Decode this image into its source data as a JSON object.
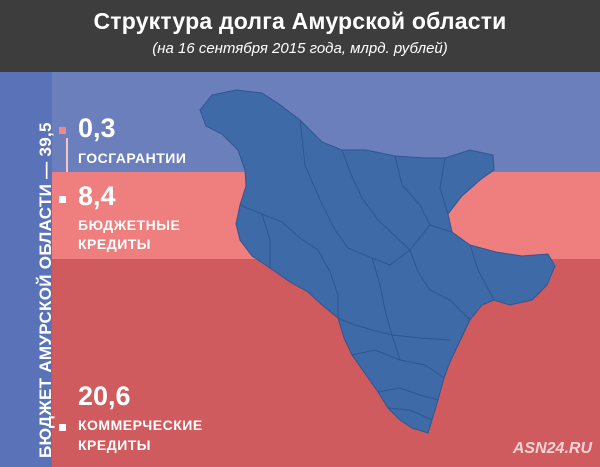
{
  "header": {
    "title": "Структура долга Амурской области",
    "subtitle": "(на 16 сентября 2015 года, млрд. рублей)"
  },
  "budget_label": "БЮДЖЕТ АМУРСКОЙ ОБЛАСТИ — 39,5",
  "items": [
    {
      "value": "0,3",
      "label": "ГОСГАРАНТИИ",
      "color": "#ef8a8c"
    },
    {
      "value": "8,4",
      "label_line1": "БЮДЖЕТНЫЕ",
      "label_line2": "КРЕДИТЫ",
      "color": "#ffffff"
    },
    {
      "value": "20,6",
      "label_line1": "КОММЕРЧЕСКИЕ",
      "label_line2": "КРЕДИТЫ",
      "color": "#ffffff"
    }
  ],
  "colors": {
    "header_bg": "#3d3d3d",
    "band_blue": "#6b7fbd",
    "band_pink": "#ef7f7e",
    "band_red": "#d05b5e",
    "map_fill": "#3e6aa8"
  },
  "watermark": "ASN24.RU"
}
